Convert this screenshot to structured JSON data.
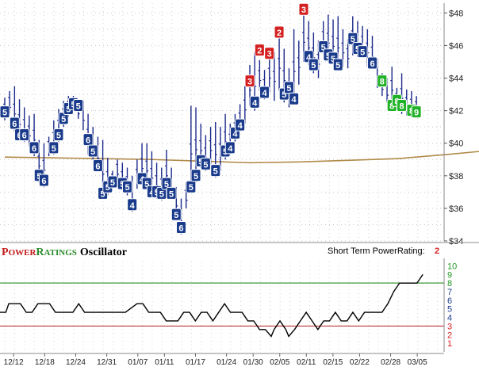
{
  "chart_data": [
    {
      "type": "candlestick-ratings",
      "y_ticks": [
        "$48",
        "$46",
        "$44",
        "$42",
        "$40",
        "$38",
        "$36",
        "$34"
      ],
      "ylim": [
        34,
        48.6
      ],
      "x_ticks": [
        "12/12",
        "12/18",
        "12/24",
        "12/31",
        "01/07",
        "01/11",
        "01/17",
        "01/24",
        "01/30",
        "02/05",
        "02/11",
        "02/15",
        "02/22",
        "02/28",
        "03/05"
      ],
      "x_tick_index": [
        2,
        9,
        16,
        23,
        30,
        36,
        43,
        50,
        56,
        62,
        68,
        74,
        80,
        87,
        93
      ],
      "moving_average": [
        [
          0,
          39.15
        ],
        [
          10,
          39.1
        ],
        [
          20,
          39.05
        ],
        [
          30,
          39.0
        ],
        [
          40,
          38.9
        ],
        [
          50,
          38.8
        ],
        [
          60,
          38.85
        ],
        [
          70,
          38.95
        ],
        [
          80,
          39.05
        ],
        [
          90,
          39.3
        ],
        [
          97,
          39.5
        ]
      ],
      "bars": [
        {
          "i": 0,
          "hi": 42.8,
          "lo": 41.4,
          "r": 5,
          "ry": 41.9
        },
        {
          "i": 1,
          "hi": 43.2,
          "lo": 41.8,
          "r": null
        },
        {
          "i": 2,
          "hi": 43.5,
          "lo": 40.7,
          "r": 6,
          "ry": 41.2
        },
        {
          "i": 3,
          "hi": 42.7,
          "lo": 40.2,
          "r": 6,
          "ry": 40.5
        },
        {
          "i": 4,
          "hi": 42.2,
          "lo": 40.1,
          "r": 6,
          "ry": 40.5
        },
        {
          "i": 5,
          "hi": 41.7,
          "lo": 39.8,
          "r": null
        },
        {
          "i": 6,
          "hi": 41.8,
          "lo": 39.2,
          "r": 6,
          "ry": 39.7
        },
        {
          "i": 7,
          "hi": 40.2,
          "lo": 37.6,
          "r": 5,
          "ry": 38.0
        },
        {
          "i": 8,
          "hi": 40.0,
          "lo": 37.3,
          "r": 6,
          "ry": 37.7
        },
        {
          "i": 9,
          "hi": 40.4,
          "lo": 39.2,
          "r": null
        },
        {
          "i": 10,
          "hi": 41.4,
          "lo": 39.3,
          "r": 5,
          "ry": 39.7
        },
        {
          "i": 11,
          "hi": 42.1,
          "lo": 40.1,
          "r": 5,
          "ry": 40.5
        },
        {
          "i": 12,
          "hi": 42.6,
          "lo": 41.0,
          "r": 5,
          "ry": 41.5
        },
        {
          "i": 13,
          "hi": 42.9,
          "lo": 41.6,
          "r": 5,
          "ry": 42.1
        },
        {
          "i": 14,
          "hi": 42.9,
          "lo": 42.0,
          "r": 5,
          "ry": 42.4
        },
        {
          "i": 15,
          "hi": 42.7,
          "lo": 41.5,
          "r": 5,
          "ry": 42.3
        },
        {
          "i": 16,
          "hi": 42.6,
          "lo": 40.8,
          "r": null
        },
        {
          "i": 17,
          "hi": 41.8,
          "lo": 39.3,
          "r": 6,
          "ry": 40.2
        },
        {
          "i": 18,
          "hi": 41.0,
          "lo": 39.0,
          "r": 5,
          "ry": 39.5
        },
        {
          "i": 19,
          "hi": 40.4,
          "lo": 38.3,
          "r": 6,
          "ry": 38.6
        },
        {
          "i": 20,
          "hi": 40.2,
          "lo": 36.6,
          "r": 5,
          "ry": 36.9
        },
        {
          "i": 21,
          "hi": 39.1,
          "lo": 36.8,
          "r": 5,
          "ry": 37.3
        },
        {
          "i": 22,
          "hi": 38.3,
          "lo": 37.3,
          "r": 5,
          "ry": 37.6
        },
        {
          "i": 23,
          "hi": 39.0,
          "lo": 37.8,
          "r": null
        },
        {
          "i": 24,
          "hi": 38.8,
          "lo": 37.1,
          "r": 5,
          "ry": 37.5
        },
        {
          "i": 25,
          "hi": 38.5,
          "lo": 36.8,
          "r": 5,
          "ry": 37.3
        },
        {
          "i": 26,
          "hi": 38.0,
          "lo": 35.8,
          "r": 4,
          "ry": 36.2
        },
        {
          "i": 27,
          "hi": 39.0,
          "lo": 37.2,
          "r": null
        },
        {
          "i": 28,
          "hi": 40.0,
          "lo": 37.5,
          "r": 4,
          "ry": 37.8
        },
        {
          "i": 29,
          "hi": 40.0,
          "lo": 37.2,
          "r": 5,
          "ry": 37.5
        },
        {
          "i": 30,
          "hi": 39.5,
          "lo": 36.8,
          "r": 4,
          "ry": 37.0
        },
        {
          "i": 31,
          "hi": 38.8,
          "lo": 36.6,
          "r": 5,
          "ry": 37.0
        },
        {
          "i": 32,
          "hi": 38.5,
          "lo": 36.5,
          "r": 5,
          "ry": 36.9
        },
        {
          "i": 33,
          "hi": 39.6,
          "lo": 37.0,
          "r": 5,
          "ry": 37.5
        },
        {
          "i": 34,
          "hi": 38.5,
          "lo": 36.6,
          "r": 5,
          "ry": 36.9
        },
        {
          "i": 35,
          "hi": 37.3,
          "lo": 35.6,
          "r": 5,
          "ry": 35.6
        },
        {
          "i": 36,
          "hi": 36.6,
          "lo": 34.4,
          "r": 6,
          "ry": 34.8
        },
        {
          "i": 37,
          "hi": 37.6,
          "lo": 36.0,
          "r": null
        },
        {
          "i": 38,
          "hi": 42.3,
          "lo": 37.0,
          "r": 5,
          "ry": 37.3
        },
        {
          "i": 39,
          "hi": 42.2,
          "lo": 37.6,
          "r": 5,
          "ry": 38.0
        },
        {
          "i": 40,
          "hi": 41.2,
          "lo": 38.5,
          "r": 5,
          "ry": 38.9
        },
        {
          "i": 41,
          "hi": 40.5,
          "lo": 38.3,
          "r": 5,
          "ry": 38.7
        },
        {
          "i": 42,
          "hi": 41.0,
          "lo": 38.7,
          "r": null
        },
        {
          "i": 43,
          "hi": 41.3,
          "lo": 37.9,
          "r": 5,
          "ry": 38.3
        },
        {
          "i": 44,
          "hi": 41.0,
          "lo": 38.3,
          "r": null
        },
        {
          "i": 45,
          "hi": 41.8,
          "lo": 39.0,
          "r": 5,
          "ry": 39.5
        },
        {
          "i": 46,
          "hi": 41.2,
          "lo": 39.3,
          "r": 4,
          "ry": 39.7
        },
        {
          "i": 47,
          "hi": 41.8,
          "lo": 40.1,
          "r": 4,
          "ry": 40.6
        },
        {
          "i": 48,
          "hi": 42.4,
          "lo": 40.7,
          "r": 4,
          "ry": 41.1
        },
        {
          "i": 49,
          "hi": 43.5,
          "lo": 41.2,
          "r": null
        },
        {
          "i": 50,
          "hi": 44.8,
          "lo": 42.3,
          "r": 3,
          "ry": 43.8
        },
        {
          "i": 51,
          "hi": 45.6,
          "lo": 42.0,
          "r": 4,
          "ry": 42.5
        },
        {
          "i": 52,
          "hi": 45.1,
          "lo": 43.2,
          "r": 2,
          "ry": 45.7
        },
        {
          "i": 53,
          "hi": 44.5,
          "lo": 42.7,
          "r": 4,
          "ry": 43.1
        },
        {
          "i": 54,
          "hi": 45.5,
          "lo": 43.1,
          "r": 3,
          "ry": 45.5
        },
        {
          "i": 55,
          "hi": 45.6,
          "lo": 42.6,
          "r": null
        },
        {
          "i": 56,
          "hi": 46.6,
          "lo": 43.2,
          "r": 2,
          "ry": 46.8
        },
        {
          "i": 57,
          "hi": 45.8,
          "lo": 42.5,
          "r": 5,
          "ry": 43.0
        },
        {
          "i": 58,
          "hi": 44.6,
          "lo": 42.2,
          "r": 5,
          "ry": 43.4
        },
        {
          "i": 59,
          "hi": 47.0,
          "lo": 42.4,
          "r": 4,
          "ry": 42.7
        },
        {
          "i": 60,
          "hi": 46.3,
          "lo": 43.6,
          "r": null
        },
        {
          "i": 61,
          "hi": 48.0,
          "lo": 45.0,
          "r": 3,
          "ry": 48.2
        },
        {
          "i": 62,
          "hi": 47.5,
          "lo": 44.8,
          "r": 4,
          "ry": 45.3
        },
        {
          "i": 63,
          "hi": 46.8,
          "lo": 44.3,
          "r": 5,
          "ry": 44.8
        },
        {
          "i": 64,
          "hi": 46.3,
          "lo": 44.0,
          "r": null
        },
        {
          "i": 65,
          "hi": 47.5,
          "lo": 45.6,
          "r": 5,
          "ry": 45.9
        },
        {
          "i": 66,
          "hi": 47.9,
          "lo": 45.0,
          "r": 5,
          "ry": 45.4
        },
        {
          "i": 67,
          "hi": 47.6,
          "lo": 44.9,
          "r": 5,
          "ry": 45.2
        },
        {
          "i": 68,
          "hi": 47.8,
          "lo": 44.5,
          "r": 5,
          "ry": 44.8
        },
        {
          "i": 69,
          "hi": 47.0,
          "lo": 44.7,
          "r": null
        },
        {
          "i": 70,
          "hi": 46.4,
          "lo": 44.6,
          "r": null
        },
        {
          "i": 71,
          "hi": 47.8,
          "lo": 45.4,
          "r": 5,
          "ry": 46.4
        },
        {
          "i": 72,
          "hi": 47.5,
          "lo": 45.3,
          "r": 5,
          "ry": 45.8
        },
        {
          "i": 73,
          "hi": 47.2,
          "lo": 45.3,
          "r": 5,
          "ry": 45.6
        },
        {
          "i": 74,
          "hi": 47.0,
          "lo": 44.7,
          "r": null
        },
        {
          "i": 75,
          "hi": 46.6,
          "lo": 44.6,
          "r": 6,
          "ry": 44.9
        },
        {
          "i": 76,
          "hi": 45.2,
          "lo": 43.4,
          "r": null
        },
        {
          "i": 77,
          "hi": 44.3,
          "lo": 42.9,
          "r": 8,
          "ry": 43.8
        },
        {
          "i": 78,
          "hi": 44.0,
          "lo": 42.5,
          "r": null
        },
        {
          "i": 79,
          "hi": 44.7,
          "lo": 42.4,
          "r": 8,
          "ry": 42.3
        },
        {
          "i": 80,
          "hi": 43.4,
          "lo": 42.1,
          "r": 8,
          "ry": 42.6
        },
        {
          "i": 81,
          "hi": 44.3,
          "lo": 41.8,
          "r": 8,
          "ry": 42.3
        },
        {
          "i": 82,
          "hi": 43.3,
          "lo": 41.7,
          "r": null
        },
        {
          "i": 83,
          "hi": 43.2,
          "lo": 41.6,
          "r": 8,
          "ry": 42.0
        },
        {
          "i": 84,
          "hi": 42.9,
          "lo": 41.6,
          "r": 9,
          "ry": 41.9
        }
      ],
      "grid": true
    },
    {
      "type": "line",
      "title": "PowerRatings Oscillator",
      "y_ticks": [
        "10",
        "9",
        "8",
        "7",
        "6",
        "5",
        "4",
        "3",
        "2",
        "1"
      ],
      "ylim": [
        0,
        10.5
      ],
      "reference_lines": [
        8,
        3
      ],
      "series": [
        {
          "values": [
            [
              0,
              4.6
            ],
            [
              2,
              4.6
            ],
            [
              3,
              5.6
            ],
            [
              5,
              5.6
            ],
            [
              7,
              5.6
            ],
            [
              9,
              4.6
            ],
            [
              11,
              4.6
            ],
            [
              13,
              5.6
            ],
            [
              15,
              5.6
            ],
            [
              17,
              5.6
            ],
            [
              19,
              4.6
            ],
            [
              23,
              4.6
            ],
            [
              25,
              4.6
            ],
            [
              27,
              5.6
            ],
            [
              29,
              4.6
            ],
            [
              33,
              4.6
            ],
            [
              37,
              4.6
            ],
            [
              41,
              4.6
            ],
            [
              43,
              4.6
            ],
            [
              47,
              5.6
            ],
            [
              49,
              5.6
            ],
            [
              51,
              4.6
            ],
            [
              53,
              4.6
            ],
            [
              55,
              4.6
            ],
            [
              57,
              3.6
            ],
            [
              61,
              3.6
            ],
            [
              63,
              4.6
            ],
            [
              65,
              4.6
            ],
            [
              67,
              3.6
            ],
            [
              69,
              4.6
            ],
            [
              71,
              4.6
            ],
            [
              73,
              3.6
            ],
            [
              75,
              4.6
            ],
            [
              77,
              5.6
            ],
            [
              79,
              4.6
            ],
            [
              81,
              4.6
            ],
            [
              83,
              4.6
            ],
            [
              85,
              3.6
            ],
            [
              87,
              3.6
            ],
            [
              89,
              2.6
            ],
            [
              91,
              2.6
            ],
            [
              93,
              1.8
            ],
            [
              94,
              2.6
            ],
            [
              96,
              3.6
            ],
            [
              98,
              2.6
            ],
            [
              99,
              1.8
            ],
            [
              101,
              2.6
            ],
            [
              103,
              3.6
            ],
            [
              105,
              4.6
            ],
            [
              107,
              3.6
            ],
            [
              109,
              2.6
            ],
            [
              111,
              3.6
            ],
            [
              113,
              3.6
            ],
            [
              115,
              4.6
            ],
            [
              117,
              3.6
            ],
            [
              119,
              3.6
            ],
            [
              121,
              4.6
            ],
            [
              123,
              3.6
            ],
            [
              125,
              4.6
            ],
            [
              127,
              4.6
            ],
            [
              131,
              4.6
            ],
            [
              133,
              5.6
            ],
            [
              135,
              7.0
            ],
            [
              137,
              8.0
            ],
            [
              141,
              8.0
            ],
            [
              143,
              8.0
            ],
            [
              145,
              9.0
            ]
          ]
        }
      ]
    }
  ],
  "panel_title_caps": "P",
  "panel_title_smallcaps": "OWER",
  "panel_title_caps2": "R",
  "panel_title_smallcaps2": "ATINGS",
  "panel_title_word": "Oscillator",
  "short_term_label": "Short Term PowerRating:",
  "short_term_value": "2",
  "colors": {
    "rating_blue": "#1a3b8c",
    "rating_red": "#d42020",
    "rating_green": "#22b22a",
    "ma_line": "#b08a48",
    "ma_line_dark": "#7a5a2a",
    "bar_line": "#1c2a8c",
    "overbought_line": "#3a9a3a",
    "oversold_line": "#c03a3a",
    "title_red": "#c01818",
    "title_green": "#2a8a2a",
    "low_label": "#d42020",
    "mid_label": "#1a3b8c",
    "high_label": "#229922"
  }
}
